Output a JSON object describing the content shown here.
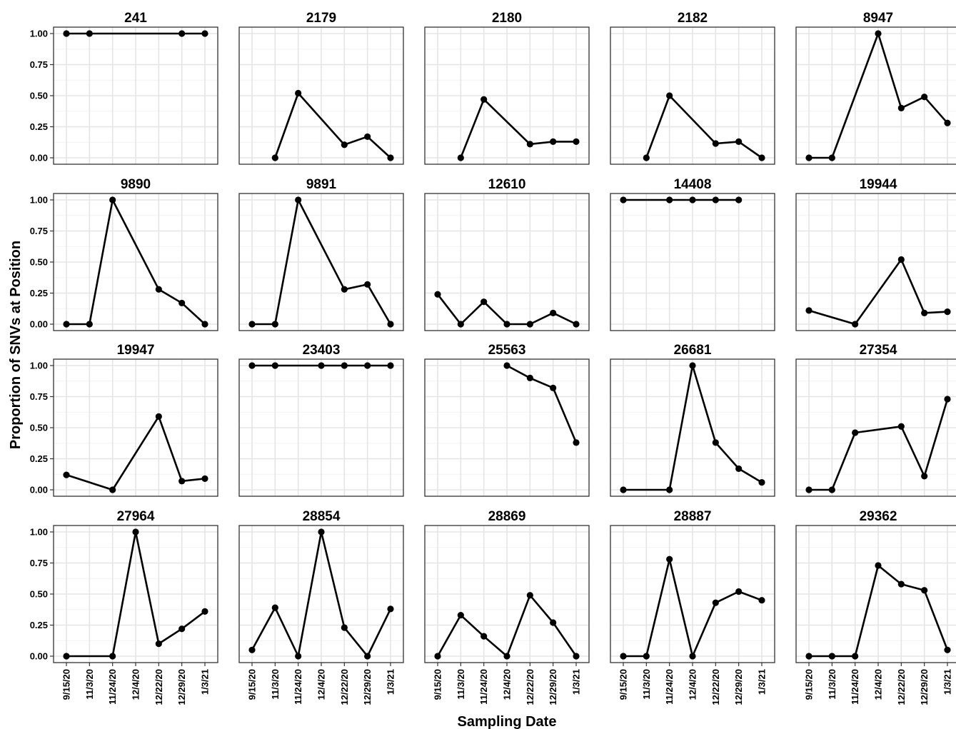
{
  "chart_data": {
    "type": "line",
    "facet_layout": "5 columns x 4 rows, shared axes",
    "xlabel": "Sampling Date",
    "ylabel": "Proportion of SNVs at Position",
    "x": [
      "9/15/20",
      "11/3/20",
      "11/24/20",
      "12/4/20",
      "12/22/20",
      "12/29/20",
      "1/3/21"
    ],
    "yticks": [
      "0.00",
      "0.25",
      "0.50",
      "0.75",
      "1.00"
    ],
    "ylim": [
      0,
      1
    ],
    "grid": true,
    "line_color": "#000000",
    "grid_color": "#e5e5e5",
    "panels": [
      {
        "title": "241",
        "values": [
          1.0,
          1.0,
          null,
          null,
          null,
          1.0,
          1.0
        ]
      },
      {
        "title": "2179",
        "values": [
          null,
          0.0,
          0.52,
          null,
          0.105,
          0.17,
          0.0
        ]
      },
      {
        "title": "2180",
        "values": [
          null,
          0.0,
          0.47,
          null,
          0.11,
          0.13,
          0.13
        ]
      },
      {
        "title": "2182",
        "values": [
          null,
          0.0,
          0.5,
          null,
          0.115,
          0.13,
          0.0
        ]
      },
      {
        "title": "8947",
        "values": [
          0.0,
          0.0,
          null,
          1.0,
          0.4,
          0.49,
          0.28
        ]
      },
      {
        "title": "9890",
        "values": [
          0.0,
          0.0,
          1.0,
          null,
          0.28,
          0.17,
          0.0
        ]
      },
      {
        "title": "9891",
        "values": [
          0.0,
          0.0,
          1.0,
          null,
          0.28,
          0.32,
          0.0
        ]
      },
      {
        "title": "12610",
        "values": [
          0.24,
          0.0,
          0.18,
          0.0,
          0.0,
          0.09,
          0.0
        ]
      },
      {
        "title": "14408",
        "values": [
          1.0,
          null,
          1.0,
          1.0,
          1.0,
          1.0,
          null
        ]
      },
      {
        "title": "19944",
        "values": [
          0.11,
          null,
          0.0,
          null,
          0.52,
          0.09,
          0.1
        ]
      },
      {
        "title": "19947",
        "values": [
          0.12,
          null,
          0.0,
          null,
          0.59,
          0.07,
          0.09
        ]
      },
      {
        "title": "23403",
        "values": [
          1.0,
          1.0,
          null,
          1.0,
          1.0,
          1.0,
          1.0
        ]
      },
      {
        "title": "25563",
        "values": [
          null,
          null,
          null,
          1.0,
          0.9,
          0.82,
          0.38
        ]
      },
      {
        "title": "26681",
        "values": [
          0.0,
          null,
          0.0,
          1.0,
          0.38,
          0.17,
          0.06
        ]
      },
      {
        "title": "27354",
        "values": [
          0.0,
          0.0,
          0.46,
          null,
          0.51,
          0.11,
          0.73
        ]
      },
      {
        "title": "27964",
        "values": [
          0.0,
          null,
          0.0,
          1.0,
          0.1,
          0.22,
          0.36
        ]
      },
      {
        "title": "28854",
        "values": [
          0.05,
          0.39,
          0.0,
          1.0,
          0.23,
          0.0,
          0.38
        ]
      },
      {
        "title": "28869",
        "values": [
          0.0,
          0.33,
          0.16,
          0.0,
          0.49,
          0.27,
          0.0
        ]
      },
      {
        "title": "28887",
        "values": [
          0.0,
          0.0,
          0.78,
          0.0,
          0.43,
          0.52,
          0.45
        ]
      },
      {
        "title": "29362",
        "values": [
          0.0,
          0.0,
          0.0,
          0.73,
          0.58,
          0.53,
          0.05
        ]
      }
    ]
  }
}
